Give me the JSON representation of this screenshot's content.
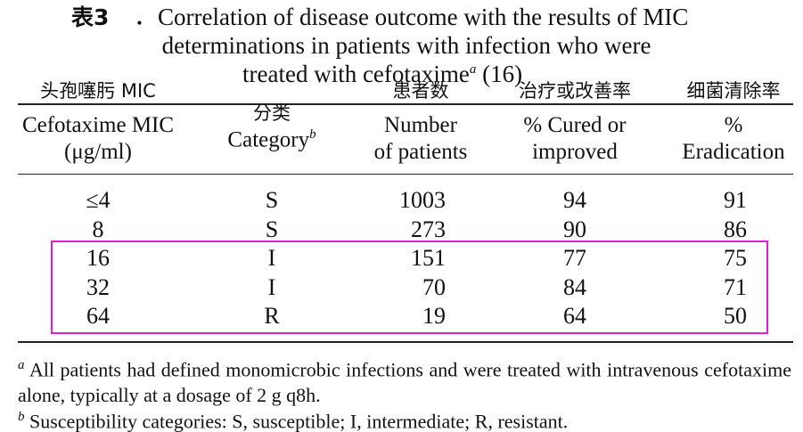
{
  "title": {
    "label": "表3",
    "line1": "．Correlation of disease outcome with the results of MIC",
    "line2": "determinations in patients with infection who were",
    "line3": "treated with cefotaxime",
    "note_mark": "a",
    "reference": "(16)"
  },
  "table": {
    "columns": [
      {
        "zh": "头孢噻肟 MIC",
        "en": [
          "Cefotaxime MIC",
          "(μg/ml)"
        ]
      },
      {
        "zh": "分类",
        "en": [
          "Category"
        ],
        "note_mark": "b"
      },
      {
        "zh": "患者数",
        "en": [
          "Number",
          "of patients"
        ]
      },
      {
        "zh": "治疗或改善率",
        "en": [
          "% Cured or",
          "improved"
        ]
      },
      {
        "zh": "细菌清除率",
        "en": [
          "%",
          "Eradication"
        ]
      }
    ],
    "rows": [
      [
        "≤4",
        "S",
        1003,
        94,
        91
      ],
      [
        "8",
        "S",
        273,
        90,
        86
      ],
      [
        "16",
        "I",
        151,
        77,
        75
      ],
      [
        "32",
        "I",
        70,
        84,
        71
      ],
      [
        "64",
        "R",
        19,
        64,
        50
      ]
    ]
  },
  "footnotes": [
    {
      "mark": "a",
      "text": "All patients had defined monomicrobic infections and were treated with intravenous cefotaxime alone, typically at a dosage of 2 g q8h."
    },
    {
      "mark": "b",
      "text": "Susceptibility categories: S, susceptible; I, intermediate; R, resistant."
    }
  ]
}
